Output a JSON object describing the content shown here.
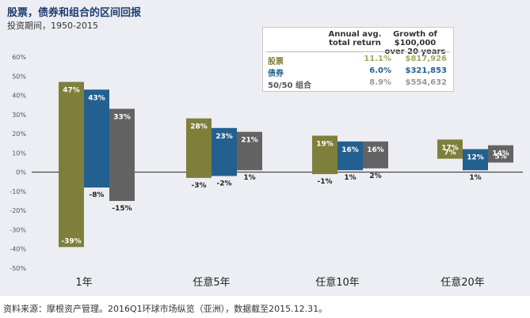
{
  "chart_data": {
    "type": "bar",
    "title": "股票，债券和组合的区间回报",
    "subtitle": "投资期间，1950-2015",
    "categories": [
      "1年",
      "任意5年",
      "任意10年",
      "任意20年"
    ],
    "series": [
      {
        "name": "股票",
        "color": "#7f7f3c",
        "max": [
          47,
          28,
          19,
          17
        ],
        "min": [
          -39,
          -3,
          -1,
          7
        ],
        "max_label": [
          "47%",
          "28%",
          "19%",
          "17%"
        ],
        "min_label": [
          "-39%",
          "-3%",
          "-1%",
          "7%"
        ]
      },
      {
        "name": "债券",
        "color": "#24608f",
        "max": [
          43,
          23,
          16,
          12
        ],
        "min": [
          -8,
          -2,
          1,
          1
        ],
        "max_label": [
          "43%",
          "23%",
          "16%",
          "12%"
        ],
        "min_label": [
          "-8%",
          "-2%",
          "1%",
          "1%"
        ]
      },
      {
        "name": "50/50 组合",
        "color": "#636363",
        "max": [
          33,
          21,
          16,
          14
        ],
        "min": [
          -15,
          1,
          2,
          5
        ],
        "max_label": [
          "33%",
          "21%",
          "16%",
          "14%"
        ],
        "min_label": [
          "-15%",
          "1%",
          "2%",
          "5%"
        ]
      }
    ],
    "yticks": [
      60,
      50,
      40,
      30,
      20,
      10,
      0,
      -10,
      -20,
      -30,
      -40,
      -50
    ],
    "ytick_labels": [
      "60%",
      "50%",
      "40%",
      "30%",
      "20%",
      "10%",
      "0%",
      "-10%",
      "-20%",
      "-30%",
      "-40%",
      "-50%"
    ],
    "ylim": [
      -50,
      60
    ],
    "grid": false,
    "legend": {
      "placement": "top-right",
      "header_return": [
        "Annual avg.",
        "total return"
      ],
      "header_growth": [
        "Growth of $100,000",
        "over 20 years"
      ],
      "rows": [
        {
          "name": "股票",
          "return": "11.1%",
          "growth": "$817,926",
          "color": "#7f7f3c",
          "return_color": "#a5a565"
        },
        {
          "name": "债券",
          "return": "6.0%",
          "growth": "$321,853",
          "color": "#24608f",
          "return_color": "#24608f"
        },
        {
          "name": "50/50 组合",
          "return": "8.9%",
          "growth": "$554,632",
          "color": "#555555",
          "return_color": "#999999"
        }
      ]
    }
  },
  "footer": "资料来源：摩根资产管理。2016Q1环球市场纵览（亚洲），数据截至2015.12.31。"
}
